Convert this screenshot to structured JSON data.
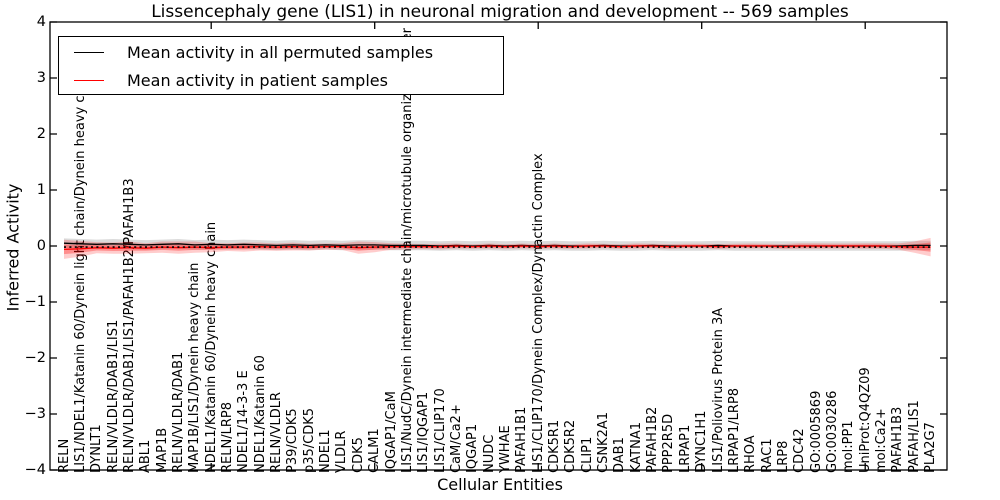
{
  "figure": {
    "background": "#ffffff",
    "axis_color": "#000000"
  },
  "chart_data": {
    "type": "line",
    "title": "Lissencephaly gene (LIS1) in neuronal migration and development -- 569 samples",
    "xlabel": "Cellular Entities",
    "ylabel": "Inferred Activity",
    "ylim": [
      -4,
      4
    ],
    "ytick_labels": [
      "4",
      "3",
      "2",
      "1",
      "0",
      "−1",
      "−2",
      "−3",
      "−4"
    ],
    "ytick_values": [
      4,
      3,
      2,
      1,
      0,
      -1,
      -2,
      -3,
      -4
    ],
    "xtick_indices": [
      10,
      20,
      30,
      40,
      50
    ],
    "grid": false,
    "legend_position": "upper left",
    "categories": [
      "RELN",
      "LIS1/NDEL1/Katanin 60/Dynein light chain/Dynein heavy chain",
      "DYNLT1",
      "RELN/VLDLR/DAB1/LIS1",
      "RELN/VLDLR/DAB1/LIS1/PAFAH1B2/PAFAH1B3",
      "ABL1",
      "MAP1B",
      "RELN/VLDLR/DAB1",
      "MAP1B/LIS1/Dynein heavy chain",
      "NDEL1/Katanin 60/Dynein heavy chain",
      "RELN/LRP8",
      "NDEL1/14-3-3 E",
      "NDEL1/Katanin 60",
      "RELN/VLDLR",
      "P39/CDK5",
      "p35/CDK5",
      "NDEL1",
      "VLDLR",
      "CDK5",
      "CALM1",
      "IQGAP1/CaM",
      "LIS1/NudC/Dynein intermediate chain/microtubule organizing center",
      "LIS1/IQGAP1",
      "LIS1/CLIP170",
      "CaM/Ca2+",
      "IQGAP1",
      "NUDC",
      "YWHAE",
      "PAFAH1B1",
      "LIS1/CLIP170/Dynein Complex/Dynactin Complex",
      "CDK5R1",
      "CDK5R2",
      "CLIP1",
      "CSNK2A1",
      "DAB1",
      "KATNA1",
      "PAFAH1B2",
      "PPP2R5D",
      "LRPAP1",
      "DYNC1H1",
      "LIS1/Poliovirus Protein 3A",
      "LRPAP1/LRP8",
      "RHOA",
      "RAC1",
      "LRP8",
      "CDC42",
      "GO:0005869",
      "GO:0030286",
      "mol:PP1",
      "UniProt:Q4QZ09",
      "mol:Ca2+",
      "PAFAH1B3",
      "PAFAH/LIS1",
      "PLA2G7"
    ],
    "series": [
      {
        "name": "Mean activity in all permuted samples",
        "color": "#000000",
        "values": [
          0.05,
          0.04,
          0.03,
          0.04,
          0.03,
          0.02,
          0.03,
          0.04,
          0.02,
          0.03,
          0.02,
          0.03,
          0.02,
          0.01,
          0.02,
          0.01,
          0.02,
          0.01,
          0.02,
          0.02,
          0.01,
          0.01,
          0.01,
          0.0,
          0.01,
          0.0,
          0.01,
          0.0,
          0.01,
          0.0,
          0.01,
          0.0,
          0.0,
          0.01,
          0.0,
          0.0,
          0.01,
          0.0,
          0.0,
          0.0,
          0.01,
          0.0,
          0.0,
          0.0,
          0.0,
          0.0,
          0.0,
          0.0,
          0.0,
          0.0,
          0.0,
          0.0,
          0.01,
          0.01
        ]
      },
      {
        "name": "Mean activity in patient samples",
        "color": "#ff0000",
        "values": [
          -0.06,
          -0.05,
          -0.03,
          -0.04,
          -0.03,
          -0.04,
          -0.02,
          -0.03,
          -0.02,
          -0.03,
          -0.02,
          -0.02,
          -0.01,
          -0.02,
          -0.01,
          -0.02,
          -0.01,
          -0.01,
          -0.03,
          -0.02,
          -0.01,
          -0.01,
          -0.01,
          -0.01,
          0.0,
          -0.01,
          0.0,
          -0.01,
          0.0,
          -0.01,
          0.0,
          -0.01,
          0.0,
          0.0,
          -0.01,
          0.0,
          0.0,
          -0.01,
          0.0,
          0.0,
          -0.01,
          0.0,
          0.0,
          0.0,
          -0.01,
          0.0,
          0.0,
          0.0,
          0.0,
          0.0,
          0.0,
          -0.01,
          -0.02,
          -0.02
        ]
      }
    ],
    "bands": {
      "permuted_range": {
        "color": "#000000",
        "opacity": 0.14,
        "half_width": 0.085
      },
      "patient_outer": {
        "color": "#ff0000",
        "opacity": 0.2,
        "half_widths": [
          0.17,
          0.14,
          0.1,
          0.1,
          0.11,
          0.09,
          0.1,
          0.11,
          0.1,
          0.08,
          0.07,
          0.08,
          0.07,
          0.065,
          0.07,
          0.06,
          0.055,
          0.06,
          0.11,
          0.09,
          0.06,
          0.05,
          0.045,
          0.05,
          0.045,
          0.04,
          0.045,
          0.04,
          0.045,
          0.04,
          0.045,
          0.04,
          0.045,
          0.04,
          0.04,
          0.045,
          0.04,
          0.045,
          0.04,
          0.04,
          0.045,
          0.04,
          0.045,
          0.04,
          0.045,
          0.05,
          0.05,
          0.045,
          0.045,
          0.05,
          0.05,
          0.055,
          0.1,
          0.165
        ]
      },
      "patient_inner": {
        "color": "#ff0000",
        "opacity": 0.3,
        "scale_of_outer": 0.5
      }
    },
    "reference_line": {
      "color": "#000000",
      "style": "dotted",
      "y": -0.02
    }
  }
}
